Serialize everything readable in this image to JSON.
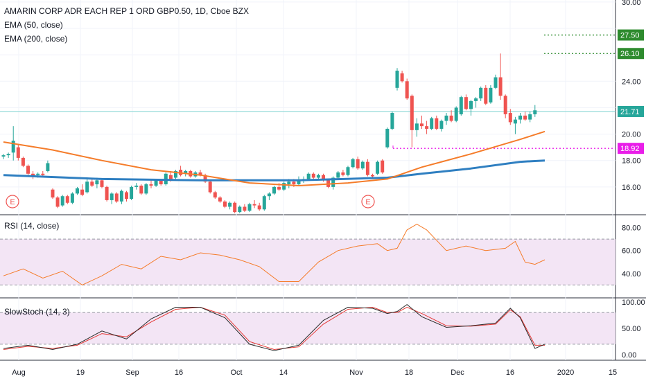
{
  "legend": {
    "symbol": "AMARIN CORP ADR EACH REP 1 ORD GBP0.50, 1D, Cboe BZX",
    "ema50": "EMA (50, close)",
    "ema200": "EMA (200, close)",
    "rsi": "RSI (14, close)",
    "stoch": "SlowStoch (14, 3)"
  },
  "colors": {
    "up": "#26a69a",
    "down": "#ef5350",
    "ema50": "#f57c2a",
    "ema200": "#2f7fc1",
    "rsi_line": "#f57c2a",
    "rsi_band": "#f3e5f5",
    "stoch_k": "#2b2b2b",
    "stoch_d": "#e53935",
    "green_level": "#2e8b2e",
    "magenta_level": "#e91ee9",
    "last_price": "#7ad1cf"
  },
  "chart_data": [
    {
      "type": "candlestick",
      "title": "AMARIN CORP ADR EACH REP 1 ORD GBP0.50, 1D, Cboe BZX",
      "ylim": [
        14.0,
        30.0
      ],
      "y_ticks": [
        16.0,
        18.0,
        20.0,
        22.0,
        24.0,
        26.0,
        28.0,
        30.0
      ],
      "y_tick_labels": [
        "16.00",
        "18.00",
        "20.00",
        "",
        "24.00",
        "",
        "",
        "30.00"
      ],
      "x_ticks": [
        "Aug",
        "19",
        "Sep",
        "16",
        "Oct",
        "14",
        "Nov",
        "18",
        "Dec",
        "16",
        "2020",
        "15"
      ],
      "candles": [
        [
          18.3,
          18.5,
          18.1,
          18.4
        ],
        [
          18.4,
          18.6,
          18.2,
          18.5
        ],
        [
          18.6,
          20.6,
          18.0,
          19.5
        ],
        [
          19.0,
          19.2,
          18.0,
          18.2
        ],
        [
          18.2,
          18.3,
          17.5,
          17.6
        ],
        [
          17.6,
          17.7,
          16.8,
          17.0
        ],
        [
          17.0,
          17.2,
          16.6,
          16.8
        ],
        [
          16.9,
          17.1,
          16.7,
          17.0
        ],
        [
          17.0,
          17.2,
          16.8,
          16.9
        ],
        [
          17.2,
          18.0,
          17.1,
          17.8
        ],
        [
          15.8,
          15.9,
          15.1,
          15.2
        ],
        [
          15.2,
          15.3,
          14.4,
          14.5
        ],
        [
          14.6,
          15.4,
          14.5,
          15.3
        ],
        [
          15.3,
          15.4,
          14.7,
          14.8
        ],
        [
          14.8,
          15.6,
          14.7,
          15.5
        ],
        [
          15.5,
          16.0,
          15.4,
          15.9
        ],
        [
          15.8,
          16.2,
          15.3,
          15.4
        ],
        [
          15.6,
          16.6,
          15.5,
          16.4
        ],
        [
          16.4,
          16.6,
          16.0,
          16.1
        ],
        [
          16.2,
          16.7,
          15.9,
          16.5
        ],
        [
          16.5,
          16.6,
          15.9,
          16.0
        ],
        [
          16.0,
          16.1,
          14.9,
          15.0
        ],
        [
          15.0,
          15.6,
          14.7,
          15.5
        ],
        [
          15.5,
          15.6,
          14.8,
          14.9
        ],
        [
          14.9,
          15.8,
          14.7,
          15.7
        ],
        [
          15.6,
          15.7,
          14.9,
          15.1
        ],
        [
          15.1,
          16.1,
          15.0,
          16.0
        ],
        [
          16.0,
          16.3,
          15.8,
          16.1
        ],
        [
          16.1,
          16.2,
          15.4,
          15.5
        ],
        [
          15.5,
          16.3,
          15.4,
          16.2
        ],
        [
          16.2,
          16.5,
          15.9,
          16.1
        ],
        [
          16.1,
          16.6,
          16.0,
          16.5
        ],
        [
          16.5,
          16.6,
          16.1,
          16.2
        ],
        [
          16.2,
          17.1,
          16.1,
          17.0
        ],
        [
          16.9,
          17.2,
          16.4,
          16.5
        ],
        [
          16.7,
          17.3,
          16.6,
          17.2
        ],
        [
          17.3,
          17.6,
          16.8,
          16.9
        ],
        [
          17.0,
          17.3,
          16.8,
          17.2
        ],
        [
          17.2,
          17.3,
          16.7,
          16.8
        ],
        [
          16.8,
          17.2,
          16.7,
          17.1
        ],
        [
          17.1,
          17.3,
          16.8,
          16.9
        ],
        [
          16.9,
          17.0,
          16.3,
          16.4
        ],
        [
          16.4,
          16.5,
          15.5,
          15.6
        ],
        [
          15.6,
          15.7,
          15.1,
          15.2
        ],
        [
          15.2,
          15.3,
          14.8,
          14.9
        ],
        [
          14.9,
          15.0,
          14.4,
          14.5
        ],
        [
          14.5,
          14.9,
          14.3,
          14.8
        ],
        [
          14.8,
          14.9,
          14.0,
          14.1
        ],
        [
          14.1,
          14.6,
          14.0,
          14.5
        ],
        [
          14.5,
          14.7,
          14.1,
          14.2
        ],
        [
          14.2,
          14.8,
          14.1,
          14.7
        ],
        [
          14.7,
          15.0,
          14.4,
          14.6
        ],
        [
          14.6,
          14.8,
          14.2,
          14.3
        ],
        [
          14.3,
          15.4,
          14.2,
          15.3
        ],
        [
          15.3,
          15.6,
          15.0,
          15.5
        ],
        [
          15.5,
          16.1,
          15.4,
          16.0
        ],
        [
          16.0,
          16.3,
          15.7,
          15.8
        ],
        [
          15.8,
          16.4,
          15.7,
          16.3
        ],
        [
          16.2,
          16.6,
          15.9,
          16.4
        ],
        [
          16.4,
          16.6,
          16.0,
          16.2
        ],
        [
          16.2,
          16.8,
          16.1,
          16.5
        ],
        [
          16.5,
          16.8,
          16.3,
          16.6
        ],
        [
          16.6,
          17.1,
          16.5,
          17.0
        ],
        [
          17.0,
          17.1,
          16.6,
          16.7
        ],
        [
          16.7,
          17.0,
          16.6,
          16.9
        ],
        [
          16.9,
          17.0,
          16.4,
          16.5
        ],
        [
          16.5,
          16.6,
          15.9,
          16.0
        ],
        [
          16.0,
          16.8,
          15.8,
          16.7
        ],
        [
          16.7,
          17.2,
          16.6,
          17.1
        ],
        [
          17.1,
          17.3,
          16.8,
          16.9
        ],
        [
          16.9,
          17.6,
          16.8,
          17.5
        ],
        [
          17.5,
          18.2,
          17.4,
          18.1
        ],
        [
          18.1,
          18.3,
          17.3,
          17.4
        ],
        [
          17.4,
          18.0,
          17.3,
          17.9
        ],
        [
          17.9,
          18.1,
          16.8,
          16.9
        ],
        [
          16.9,
          17.0,
          16.6,
          16.8
        ],
        [
          17.0,
          18.0,
          16.9,
          17.9
        ],
        [
          18.0,
          18.1,
          17.0,
          17.1
        ],
        [
          19.0,
          20.5,
          18.9,
          20.4
        ],
        [
          20.4,
          21.7,
          20.3,
          21.6
        ],
        [
          23.5,
          25.0,
          23.3,
          24.8
        ],
        [
          24.6,
          24.8,
          23.9,
          24.0
        ],
        [
          24.0,
          24.2,
          22.6,
          22.7
        ],
        [
          22.9,
          23.0,
          19.0,
          20.3
        ],
        [
          20.3,
          21.2,
          19.8,
          20.8
        ],
        [
          20.8,
          21.4,
          20.4,
          20.6
        ],
        [
          20.6,
          21.0,
          20.0,
          20.4
        ],
        [
          20.4,
          21.3,
          20.3,
          21.2
        ],
        [
          21.2,
          21.4,
          20.3,
          20.4
        ],
        [
          20.4,
          21.1,
          20.2,
          21.0
        ],
        [
          21.0,
          21.6,
          20.7,
          21.4
        ],
        [
          21.4,
          21.8,
          20.9,
          21.0
        ],
        [
          21.0,
          22.1,
          20.9,
          22.0
        ],
        [
          21.5,
          22.9,
          21.4,
          22.8
        ],
        [
          22.8,
          23.0,
          21.8,
          21.9
        ],
        [
          21.9,
          22.6,
          21.4,
          22.5
        ],
        [
          22.5,
          22.8,
          22.0,
          22.7
        ],
        [
          22.7,
          23.6,
          22.5,
          23.5
        ],
        [
          23.5,
          23.7,
          22.2,
          22.3
        ],
        [
          22.4,
          23.7,
          22.3,
          23.5
        ],
        [
          23.5,
          24.5,
          23.4,
          24.3
        ],
        [
          24.3,
          26.1,
          22.6,
          22.9
        ],
        [
          22.9,
          23.0,
          21.2,
          21.5
        ],
        [
          21.6,
          21.9,
          20.7,
          20.9
        ],
        [
          20.8,
          21.3,
          20.0,
          21.1
        ],
        [
          21.1,
          21.6,
          20.8,
          21.4
        ],
        [
          21.4,
          21.7,
          21.0,
          21.1
        ],
        [
          21.1,
          21.7,
          20.9,
          21.5
        ],
        [
          21.5,
          22.2,
          21.3,
          21.8
        ]
      ],
      "ema50": [
        [
          0,
          19.4
        ],
        [
          10,
          18.8
        ],
        [
          20,
          18.0
        ],
        [
          30,
          17.3
        ],
        [
          40,
          16.9
        ],
        [
          50,
          16.3
        ],
        [
          60,
          16.1
        ],
        [
          70,
          16.3
        ],
        [
          78,
          16.6
        ],
        [
          85,
          17.5
        ],
        [
          95,
          18.5
        ],
        [
          105,
          19.6
        ],
        [
          110,
          20.2
        ]
      ],
      "ema200": [
        [
          0,
          16.9
        ],
        [
          20,
          16.6
        ],
        [
          40,
          16.5
        ],
        [
          60,
          16.5
        ],
        [
          78,
          16.7
        ],
        [
          85,
          17.0
        ],
        [
          95,
          17.4
        ],
        [
          105,
          17.9
        ],
        [
          110,
          18.0
        ]
      ],
      "levels": [
        {
          "label": "27.50",
          "value": 27.5
        },
        {
          "label": "26.10",
          "value": 26.1
        },
        {
          "label": "18.92",
          "value": 18.92
        },
        {
          "label": "21.71",
          "value": 21.71
        }
      ],
      "earnings_markers": [
        "E",
        "E"
      ]
    },
    {
      "type": "line",
      "title": "RSI (14, close)",
      "ylim": [
        20,
        90
      ],
      "y_tick_labels": [
        "40.00",
        "60.00",
        "80.00"
      ],
      "y_ticks": [
        40,
        60,
        80
      ],
      "band": [
        30,
        70
      ],
      "x": [
        0,
        4,
        8,
        12,
        16,
        20,
        24,
        28,
        32,
        36,
        40,
        44,
        48,
        52,
        56,
        60,
        64,
        68,
        72,
        76,
        78,
        80,
        82,
        84,
        86,
        90,
        94,
        98,
        102,
        104,
        106,
        108,
        110
      ],
      "values": [
        38,
        44,
        36,
        42,
        30,
        38,
        48,
        44,
        55,
        52,
        58,
        56,
        52,
        46,
        33,
        33,
        50,
        60,
        64,
        66,
        60,
        62,
        78,
        83,
        78,
        60,
        64,
        60,
        62,
        68,
        50,
        48,
        52
      ]
    },
    {
      "type": "line",
      "title": "SlowStoch (14, 3)",
      "ylim": [
        -5,
        105
      ],
      "y_tick_labels": [
        "0.00",
        "50.00",
        "100.00"
      ],
      "y_ticks": [
        0,
        50,
        100
      ],
      "band": [
        20,
        80
      ],
      "x": [
        0,
        5,
        10,
        15,
        20,
        25,
        30,
        35,
        40,
        45,
        50,
        55,
        60,
        65,
        70,
        75,
        78,
        80,
        82,
        85,
        90,
        95,
        100,
        103,
        105,
        108,
        110
      ],
      "k": [
        12,
        18,
        10,
        20,
        45,
        30,
        68,
        90,
        90,
        70,
        20,
        8,
        18,
        65,
        90,
        88,
        78,
        82,
        95,
        72,
        52,
        55,
        60,
        88,
        70,
        12,
        20
      ],
      "d": [
        10,
        16,
        12,
        18,
        40,
        34,
        62,
        86,
        90,
        75,
        25,
        10,
        15,
        58,
        86,
        90,
        80,
        80,
        90,
        78,
        55,
        54,
        58,
        85,
        72,
        18,
        18
      ]
    }
  ]
}
